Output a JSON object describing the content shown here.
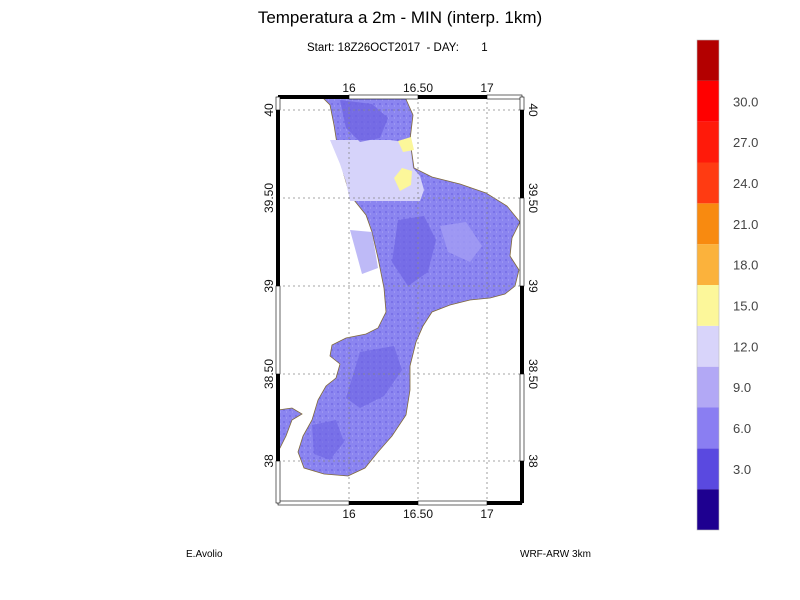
{
  "title": "Temperatura a 2m - MIN (interp. 1km)",
  "subtitle": "Start: 18Z26OCT2017  - DAY:       1",
  "author": "E.Avolio",
  "model": "WRF-ARW 3km",
  "map": {
    "lon_ticks": [
      "16",
      "16.50",
      "17"
    ],
    "lat_ticks": [
      "40",
      "39.50",
      "39",
      "38.50",
      "38"
    ],
    "land_color": "#8b85f0",
    "sea_color": "#ffffff"
  },
  "colorbar": {
    "colors": [
      "#1e0090",
      "#5a49e0",
      "#8a7ef2",
      "#b2a8f5",
      "#d8d4fa",
      "#fcf79a",
      "#fbb23c",
      "#f88a10",
      "#ff3b12",
      "#ff1a0a",
      "#ff0000",
      "#b30000"
    ],
    "labels": [
      "3.0",
      "6.0",
      "9.0",
      "12.0",
      "15.0",
      "18.0",
      "21.0",
      "24.0",
      "27.0",
      "30.0"
    ]
  }
}
